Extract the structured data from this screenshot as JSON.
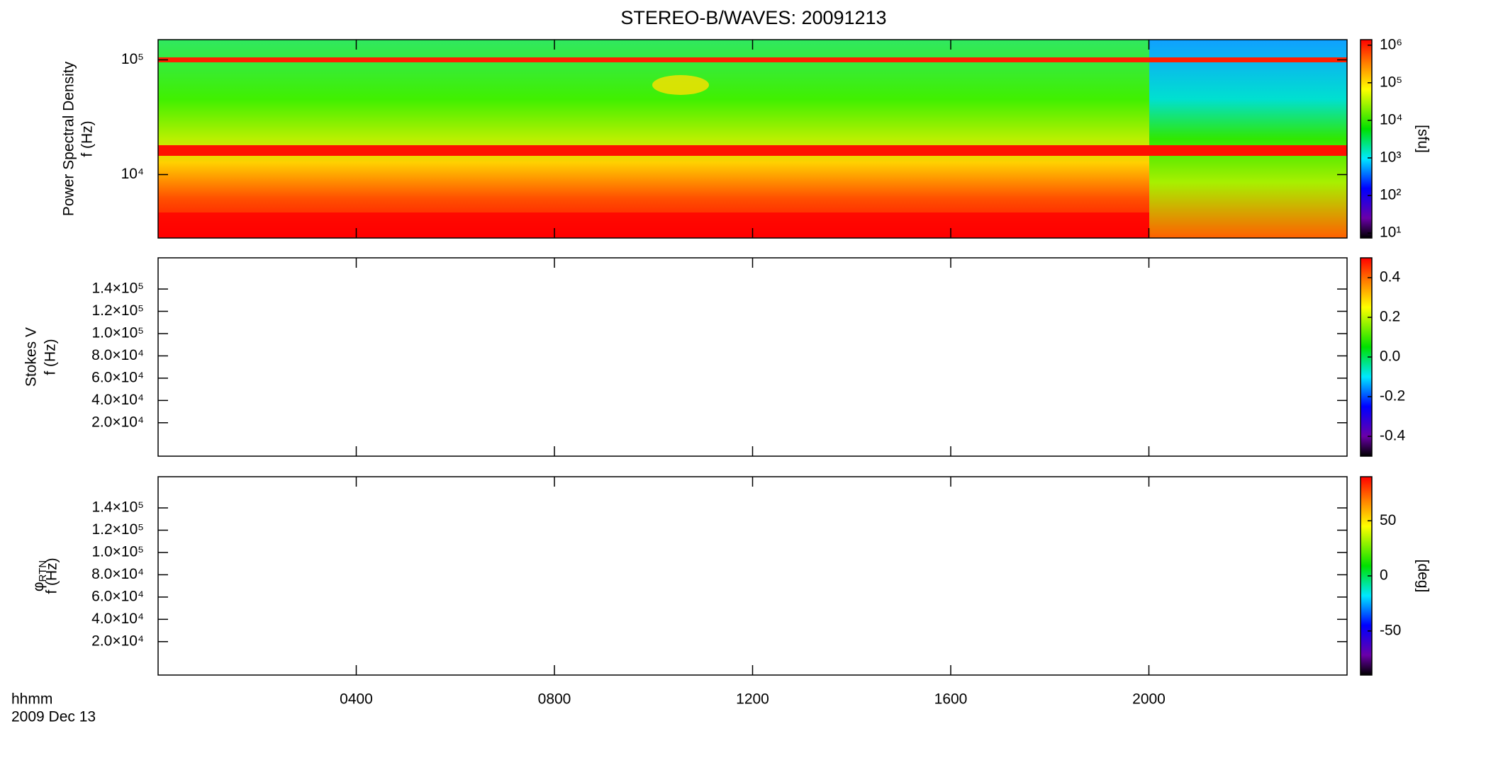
{
  "chart_data": [
    {
      "type": "spectrogram",
      "title": "STEREO-B/WAVES: 20091213",
      "ylabel": [
        "Power Spectral Density",
        "f (Hz)"
      ],
      "ylog": true,
      "ylim": [
        2800,
        150000
      ],
      "yticks": [
        {
          "value": 10000,
          "label": "10⁴"
        },
        {
          "value": 100000,
          "label": "10⁵"
        }
      ],
      "colorbar": {
        "label": "[sfu]",
        "log": true,
        "clim": [
          7.4,
          1400000
        ],
        "ticks": [
          {
            "value": 10,
            "label": "10¹"
          },
          {
            "value": 100,
            "label": "10²"
          },
          {
            "value": 1000,
            "label": "10³"
          },
          {
            "value": 10000,
            "label": "10⁴"
          },
          {
            "value": 100000,
            "label": "10⁵"
          },
          {
            "value": 1000000,
            "label": "10⁶"
          }
        ]
      }
    },
    {
      "type": "spectrogram",
      "ylabel": [
        "Stokes V",
        "f (Hz)"
      ],
      "ylog": false,
      "ylim": [
        -10000,
        168000
      ],
      "yticks": [
        {
          "value": 20000,
          "label": "2.0×10⁴"
        },
        {
          "value": 40000,
          "label": "4.0×10⁴"
        },
        {
          "value": 60000,
          "label": "6.0×10⁴"
        },
        {
          "value": 80000,
          "label": "8.0×10⁴"
        },
        {
          "value": 100000,
          "label": "1.0×10⁵"
        },
        {
          "value": 120000,
          "label": "1.2×10⁵"
        },
        {
          "value": 140000,
          "label": "1.4×10⁵"
        }
      ],
      "colorbar": {
        "log": false,
        "clim": [
          -0.5,
          0.5
        ],
        "ticks": [
          -0.4,
          -0.2,
          {
            "value": 0,
            "label": "0.0"
          },
          0.2,
          0.4
        ]
      }
    },
    {
      "type": "spectrogram",
      "ylabel_symbol": "φ",
      "ylabel_subscript": "RTN",
      "ylabel": [
        "f (Hz)"
      ],
      "ylog": false,
      "ylim": [
        -10000,
        168000
      ],
      "yticks": [
        {
          "value": 20000,
          "label": "2.0×10⁴"
        },
        {
          "value": 40000,
          "label": "4.0×10⁴"
        },
        {
          "value": 60000,
          "label": "6.0×10⁴"
        },
        {
          "value": 80000,
          "label": "8.0×10⁴"
        },
        {
          "value": 100000,
          "label": "1.0×10⁵"
        },
        {
          "value": 120000,
          "label": "1.2×10⁵"
        },
        {
          "value": 140000,
          "label": "1.4×10⁵"
        }
      ],
      "colorbar": {
        "label": "[deg]",
        "log": false,
        "clim": [
          -90,
          90
        ],
        "ticks": [
          -50,
          0,
          50
        ]
      },
      "xlabel": "hhmm",
      "date": "2009 Dec 13",
      "xlim": [
        0,
        24
      ],
      "xticks": [
        {
          "value": 4,
          "label": "0400"
        },
        {
          "value": 8,
          "label": "0800"
        },
        {
          "value": 12,
          "label": "1200"
        },
        {
          "value": 16,
          "label": "1600"
        },
        {
          "value": 20,
          "label": "2000"
        }
      ]
    }
  ]
}
